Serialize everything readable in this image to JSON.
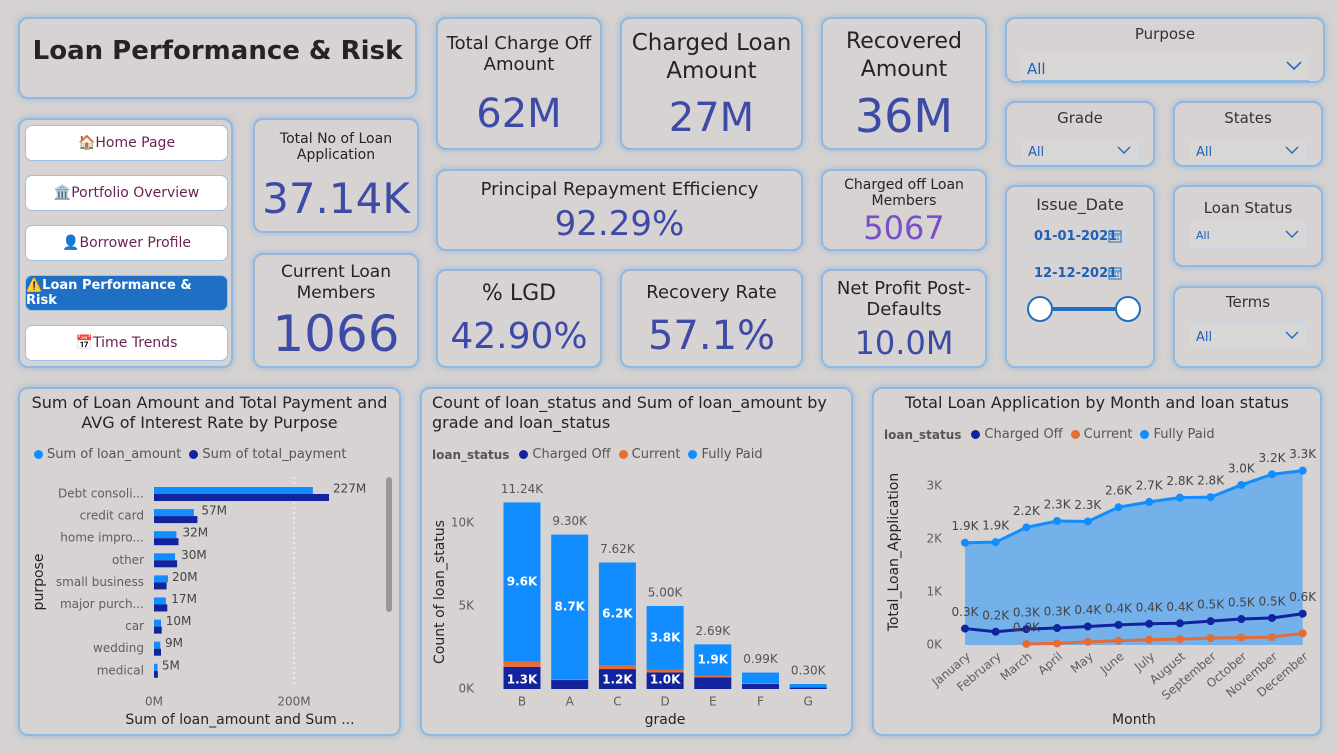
{
  "header": {
    "title": "Loan Performance & Risk"
  },
  "nav": {
    "items": [
      "🏠Home Page",
      "🏛️Portfolio Overview",
      "👤Borrower Profile",
      "⚠️Loan Performance & Risk",
      "📅Time Trends"
    ],
    "active": 3
  },
  "kpis": [
    {
      "label": "Total Charge Off Amount",
      "value": "62M"
    },
    {
      "label": "Charged Loan Amount",
      "value": "27M"
    },
    {
      "label": "Recovered Amount",
      "value": "36M"
    },
    {
      "label": "Total No of Loan Application",
      "value": "37.14K"
    },
    {
      "label": "Current Loan Members",
      "value": "1066"
    },
    {
      "label": "Principal Repayment Efficiency",
      "value": "92.29%"
    },
    {
      "label": "Charged off Loan Members",
      "value": "5067"
    },
    {
      "label": "% LGD",
      "value": "42.90%"
    },
    {
      "label": "Recovery Rate",
      "value": "57.1%"
    },
    {
      "label": "Net Profit Post-Defaults",
      "value": "10.0M"
    }
  ],
  "filters": {
    "purpose": {
      "title": "Purpose",
      "value": "All"
    },
    "grade": {
      "title": "Grade",
      "value": "All"
    },
    "states": {
      "title": "States",
      "value": "All"
    },
    "issue_date": {
      "title": "Issue_Date",
      "start": "01-01-2021",
      "end": "12-12-2021"
    },
    "loan_status": {
      "title": "Loan Status",
      "value": "All"
    },
    "terms": {
      "title": "Terms",
      "value": "All"
    }
  },
  "charts": [
    {
      "type": "bar",
      "orientation": "horizontal",
      "title": "Sum of Loan Amount and Total Payment and AVG of Interest Rate by Purpose",
      "x_label": "Sum of loan_amount and Sum ...",
      "y_label": "purpose",
      "categories": [
        "Debt consoli...",
        "credit card",
        "home impro...",
        "other",
        "small business",
        "major purch...",
        "car",
        "wedding",
        "medical"
      ],
      "series": [
        {
          "name": "Sum of loan_amount",
          "color": "#118DFF",
          "values": [
            227,
            57,
            32,
            30,
            20,
            17,
            10,
            9,
            5
          ],
          "value_labels": [
            "227M",
            "57M",
            "32M",
            "30M",
            "20M",
            "17M",
            "10M",
            "9M",
            "5M"
          ]
        },
        {
          "name": "Sum of total_payment",
          "color": "#12239E",
          "values": [
            250,
            62,
            35,
            33,
            18,
            19,
            11,
            10,
            5.5
          ]
        }
      ],
      "xlim": [
        0,
        325
      ],
      "xticks": [
        {
          "value": 0,
          "label": "0M"
        },
        {
          "value": 200,
          "label": "200M"
        }
      ],
      "grid": true
    },
    {
      "type": "stacked_bar",
      "title": "Count of loan_status and Sum of loan_amount by grade and loan_status",
      "legend_title": "loan_status",
      "x_label": "grade",
      "y_label": "Count of loan_status",
      "categories": [
        "B",
        "A",
        "C",
        "D",
        "E",
        "F",
        "G"
      ],
      "series": [
        {
          "name": "Charged Off",
          "color": "#12239E",
          "values": [
            1330,
            540,
            1200,
            1000,
            700,
            300,
            100
          ],
          "value_labels": [
            "1.3K",
            null,
            "1.2K",
            "1.0K",
            null,
            null,
            null
          ]
        },
        {
          "name": "Current",
          "color": "#E66C37",
          "values": [
            310,
            60,
            220,
            150,
            90,
            50,
            20
          ]
        },
        {
          "name": "Fully Paid",
          "color": "#118DFF",
          "values": [
            9600,
            8700,
            6200,
            3850,
            1900,
            640,
            180
          ],
          "value_labels": [
            "9.6K",
            "8.7K",
            "6.2K",
            "3.8K",
            "1.9K",
            null,
            null
          ]
        }
      ],
      "totals": {
        "values": [
          11240,
          9300,
          7620,
          5000,
          2690,
          990,
          300
        ],
        "value_labels": [
          "11.24K",
          "9.30K",
          "7.62K",
          "5.00K",
          "2.69K",
          "0.99K",
          "0.30K"
        ]
      },
      "ylim": [
        0,
        12500
      ],
      "yticks": [
        {
          "value": 0,
          "label": "0K"
        },
        {
          "value": 5000,
          "label": "5K"
        },
        {
          "value": 10000,
          "label": "10K"
        }
      ],
      "grid": false
    },
    {
      "type": "line",
      "title": "Total Loan Application by Month and loan status",
      "legend_title": "loan_status",
      "x_label": "Month",
      "y_label": "Total_Loan_Application",
      "categories": [
        "January",
        "February",
        "March",
        "April",
        "May",
        "June",
        "July",
        "August",
        "September",
        "October",
        "November",
        "December"
      ],
      "series": [
        {
          "name": "Charged Off",
          "color": "#12239E",
          "values": [
            310,
            250,
            300,
            320,
            350,
            380,
            400,
            410,
            450,
            490,
            510,
            590
          ],
          "value_labels": [
            "0.3K",
            "0.2K",
            "0.3K",
            "0.3K",
            "0.4K",
            "0.4K",
            "0.4K",
            "0.4K",
            "0.5K",
            "0.5K",
            "0.5K",
            "0.6K"
          ]
        },
        {
          "name": "Current",
          "color": "#E66C37",
          "values": [
            null,
            null,
            20,
            30,
            60,
            80,
            100,
            110,
            130,
            140,
            150,
            220
          ],
          "value_labels": [
            null,
            null,
            "0.0K",
            null,
            null,
            null,
            null,
            null,
            null,
            null,
            null,
            null
          ]
        },
        {
          "name": "Fully Paid",
          "color": "#118DFF",
          "area": true,
          "values": [
            1930,
            1940,
            2220,
            2340,
            2330,
            2600,
            2700,
            2780,
            2790,
            3020,
            3220,
            3290
          ],
          "value_labels": [
            "1.9K",
            "1.9K",
            "2.2K",
            "2.3K",
            "2.3K",
            "2.6K",
            "2.7K",
            "2.8K",
            "2.8K",
            "3.0K",
            "3.2K",
            "3.3K"
          ]
        }
      ],
      "ylim": [
        0,
        3500
      ],
      "yticks": [
        {
          "value": 0,
          "label": "0K"
        },
        {
          "value": 1000,
          "label": "1K"
        },
        {
          "value": 2000,
          "label": "2K"
        },
        {
          "value": 3000,
          "label": "3K"
        }
      ],
      "grid": false
    }
  ]
}
